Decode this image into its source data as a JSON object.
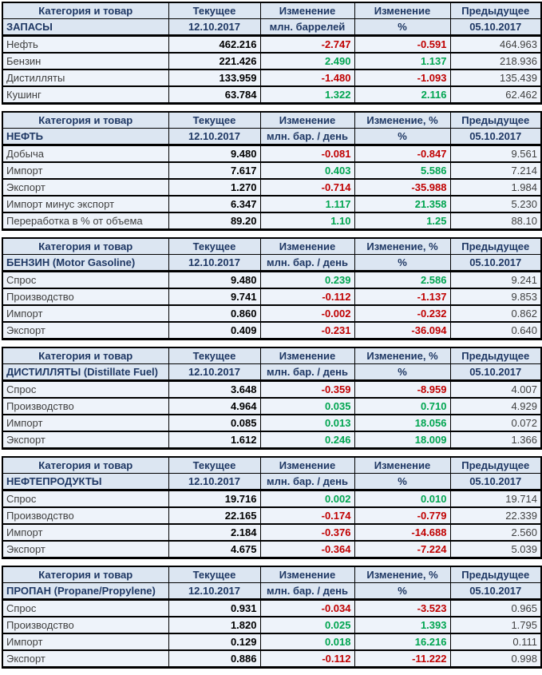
{
  "colors": {
    "header_bg": "#dce6f2",
    "row_bg": "#eef3fa",
    "border": "#000000",
    "header_text": "#1f3864",
    "label_text": "#3f3f3f",
    "value_text": "#000000",
    "positive_change": "#00a550",
    "negative_change": "#c00000"
  },
  "tables": [
    {
      "id": "zapasy",
      "headers": [
        "Категория и товар",
        "Текущее",
        "Изменение",
        "Изменение",
        "Предыдущее"
      ],
      "subheaders": [
        "ЗАПАСЫ",
        "12.10.2017",
        "млн. баррелей",
        "%",
        "05.10.2017"
      ],
      "rows": [
        {
          "label": "Нефть",
          "current": "462.216",
          "change": "-2.747",
          "change_pct": "-0.591",
          "previous": "464.963"
        },
        {
          "label": "Бензин",
          "current": "221.426",
          "change": "2.490",
          "change_pct": "1.137",
          "previous": "218.936"
        },
        {
          "label": "Дистилляты",
          "current": "133.959",
          "change": "-1.480",
          "change_pct": "-1.093",
          "previous": "135.439"
        },
        {
          "label": "Кушинг",
          "current": "63.784",
          "change": "1.322",
          "change_pct": "2.116",
          "previous": "62.462"
        }
      ]
    },
    {
      "id": "neft",
      "headers": [
        "Категория и товар",
        "Текущее",
        "Изменение",
        "Изменение, %",
        "Предыдущее"
      ],
      "subheaders": [
        "НЕФТЬ",
        "12.10.2017",
        "млн. бар. / день",
        "%",
        "05.10.2017"
      ],
      "rows": [
        {
          "label": "Добыча",
          "current": "9.480",
          "change": "-0.081",
          "change_pct": "-0.847",
          "previous": "9.561"
        },
        {
          "label": "Импорт",
          "current": "7.617",
          "change": "0.403",
          "change_pct": "5.586",
          "previous": "7.214"
        },
        {
          "label": "Экспорт",
          "current": "1.270",
          "change": "-0.714",
          "change_pct": "-35.988",
          "previous": "1.984"
        },
        {
          "label": "Импорт минус экспорт",
          "current": "6.347",
          "change": "1.117",
          "change_pct": "21.358",
          "previous": "5.230"
        },
        {
          "label": "Переработка в % от объема",
          "current": "89.20",
          "change": "1.10",
          "change_pct": "1.25",
          "previous": "88.10"
        }
      ]
    },
    {
      "id": "benzin",
      "headers": [
        "Категория и товар",
        "Текущее",
        "Изменение",
        "Изменение, %",
        "Предыдущее"
      ],
      "subheaders": [
        "БЕНЗИН (Motor Gasoline)",
        "12.10.2017",
        "млн. бар. / день",
        "%",
        "05.10.2017"
      ],
      "rows": [
        {
          "label": "Спрос",
          "current": "9.480",
          "change": "0.239",
          "change_pct": "2.586",
          "previous": "9.241"
        },
        {
          "label": "Производство",
          "current": "9.741",
          "change": "-0.112",
          "change_pct": "-1.137",
          "previous": "9.853"
        },
        {
          "label": "Импорт",
          "current": "0.860",
          "change": "-0.002",
          "change_pct": "-0.232",
          "previous": "0.862"
        },
        {
          "label": "Экспорт",
          "current": "0.409",
          "change": "-0.231",
          "change_pct": "-36.094",
          "previous": "0.640"
        }
      ]
    },
    {
      "id": "distillyaty",
      "headers": [
        "Категория и товар",
        "Текущее",
        "Изменение",
        "Изменение, %",
        "Предыдущее"
      ],
      "subheaders": [
        "ДИСТИЛЛЯТЫ (Distillate Fuel)",
        "12.10.2017",
        "млн. бар. / день",
        "%",
        "05.10.2017"
      ],
      "rows": [
        {
          "label": "Спрос",
          "current": "3.648",
          "change": "-0.359",
          "change_pct": "-8.959",
          "previous": "4.007"
        },
        {
          "label": "Производство",
          "current": "4.964",
          "change": "0.035",
          "change_pct": "0.710",
          "previous": "4.929"
        },
        {
          "label": "Импорт",
          "current": "0.085",
          "change": "0.013",
          "change_pct": "18.056",
          "previous": "0.072"
        },
        {
          "label": "Экспорт",
          "current": "1.612",
          "change": "0.246",
          "change_pct": "18.009",
          "previous": "1.366"
        }
      ]
    },
    {
      "id": "nefteprodukty",
      "headers": [
        "Категория и товар",
        "Текущее",
        "Изменение",
        "Изменение",
        "Предыдущее"
      ],
      "subheaders": [
        "НЕФТЕПРОДУКТЫ",
        "12.10.2017",
        "млн. бар. / день",
        "%",
        "05.10.2017"
      ],
      "rows": [
        {
          "label": "Спрос",
          "current": "19.716",
          "change": "0.002",
          "change_pct": "0.010",
          "previous": "19.714"
        },
        {
          "label": "Производство",
          "current": "22.165",
          "change": "-0.174",
          "change_pct": "-0.779",
          "previous": "22.339"
        },
        {
          "label": "Импорт",
          "current": "2.184",
          "change": "-0.376",
          "change_pct": "-14.688",
          "previous": "2.560"
        },
        {
          "label": "Экспорт",
          "current": "4.675",
          "change": "-0.364",
          "change_pct": "-7.224",
          "previous": "5.039"
        }
      ]
    },
    {
      "id": "propan",
      "headers": [
        "Категория и товар",
        "Текущее",
        "Изменение",
        "Изменение, %",
        "Предыдущее"
      ],
      "subheaders": [
        "ПРОПАН (Propane/Propylene)",
        "12.10.2017",
        "млн. бар. / день",
        "%",
        "05.10.2017"
      ],
      "rows": [
        {
          "label": "Спрос",
          "current": "0.931",
          "change": "-0.034",
          "change_pct": "-3.523",
          "previous": "0.965"
        },
        {
          "label": "Производство",
          "current": "1.820",
          "change": "0.025",
          "change_pct": "1.393",
          "previous": "1.795"
        },
        {
          "label": "Импорт",
          "current": "0.129",
          "change": "0.018",
          "change_pct": "16.216",
          "previous": "0.111"
        },
        {
          "label": "Экспорт",
          "current": "0.886",
          "change": "-0.112",
          "change_pct": "-11.222",
          "previous": "0.998"
        }
      ]
    }
  ]
}
